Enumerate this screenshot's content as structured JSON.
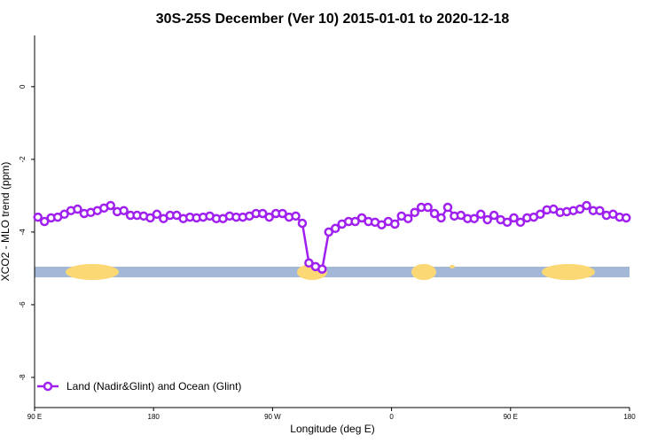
{
  "chart_data": {
    "type": "line",
    "title": "30S-25S December (Ver 10)   2015-01-01 to 2020-12-18",
    "x_label": "Longitude (deg E)",
    "y_label": "XCO2 - MLO trend (ppm)",
    "xlim": [
      90,
      540
    ],
    "xticks": [
      {
        "value": 90,
        "label": "90 E"
      },
      180,
      {
        "value": 270,
        "label": "90 W"
      },
      {
        "value": 360,
        "label": "0"
      },
      {
        "value": 450,
        "label": "90 E"
      },
      {
        "value": 540,
        "label": "180"
      }
    ],
    "ylim": [
      -8.83,
      1.41
    ],
    "yticks": [
      0,
      -2,
      -4,
      -6,
      -8
    ],
    "legend": "bottom-left",
    "x": [
      92.5,
      97.5,
      102.5,
      107.5,
      112.5,
      117.5,
      122.5,
      127.5,
      132.5,
      137.5,
      142.5,
      147.5,
      152.5,
      157.5,
      162.5,
      167.5,
      172.5,
      177.5,
      182.5,
      187.5,
      192.5,
      197.5,
      202.5,
      207.5,
      212.5,
      217.5,
      222.5,
      227.5,
      232.5,
      237.5,
      242.5,
      247.5,
      252.5,
      257.5,
      262.5,
      267.5,
      272.5,
      277.5,
      282.5,
      287.5,
      292.5,
      297.5,
      302.5,
      307.5,
      312.5,
      317.5,
      322.5,
      327.5,
      332.5,
      337.5,
      342.5,
      347.5,
      352.5,
      357.5,
      362.5,
      367.5,
      372.5,
      377.5,
      382.5,
      387.5,
      392.5,
      397.5,
      402.5,
      407.5,
      412.5,
      417.5,
      422.5,
      427.5,
      432.5,
      437.5,
      442.5,
      447.5,
      452.5,
      457.5,
      462.5,
      467.5,
      472.5,
      477.5,
      482.5,
      487.5,
      492.5,
      497.5,
      502.5,
      507.5,
      512.5,
      517.5,
      522.5,
      527.5,
      532.5,
      537.5
    ],
    "series": [
      {
        "name": "Land (Nadir&Glint) and Ocean (Glint)",
        "color": "#a020f0",
        "values": [
          -3.59,
          -3.71,
          -3.61,
          -3.59,
          -3.51,
          -3.41,
          -3.37,
          -3.49,
          -3.46,
          -3.41,
          -3.34,
          -3.27,
          -3.44,
          -3.41,
          -3.54,
          -3.54,
          -3.56,
          -3.61,
          -3.51,
          -3.63,
          -3.54,
          -3.54,
          -3.63,
          -3.59,
          -3.61,
          -3.59,
          -3.56,
          -3.63,
          -3.63,
          -3.56,
          -3.59,
          -3.59,
          -3.56,
          -3.49,
          -3.49,
          -3.59,
          -3.49,
          -3.49,
          -3.59,
          -3.56,
          -3.76,
          -4.85,
          -4.95,
          -5.02,
          -4.0,
          -3.9,
          -3.78,
          -3.71,
          -3.71,
          -3.61,
          -3.71,
          -3.73,
          -3.8,
          -3.71,
          -3.78,
          -3.56,
          -3.63,
          -3.46,
          -3.32,
          -3.32,
          -3.49,
          -3.61,
          -3.32,
          -3.56,
          -3.54,
          -3.63,
          -3.63,
          -3.51,
          -3.66,
          -3.54,
          -3.66,
          -3.73,
          -3.61,
          -3.73,
          -3.61,
          -3.59,
          -3.51,
          -3.39,
          -3.37,
          -3.46,
          -3.44,
          -3.41,
          -3.37,
          -3.27,
          -3.41,
          -3.41,
          -3.54,
          -3.51,
          -3.59,
          -3.61
        ]
      }
    ]
  }
}
